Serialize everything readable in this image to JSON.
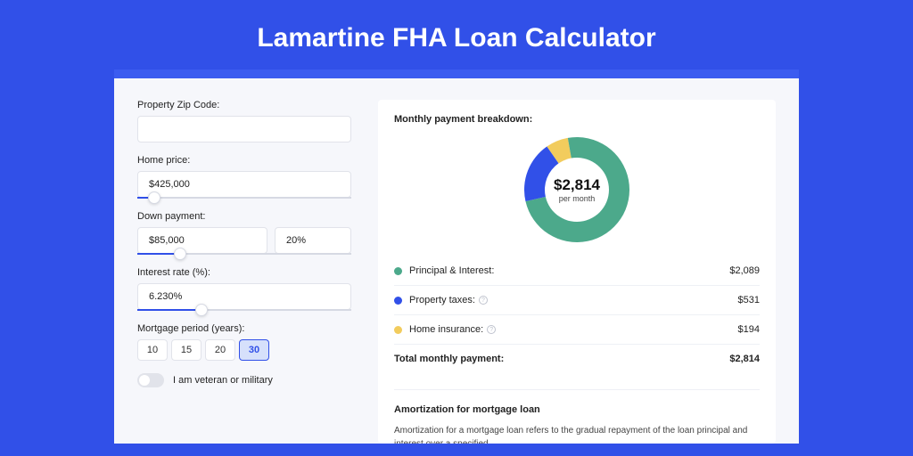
{
  "page": {
    "title": "Lamartine FHA Loan Calculator",
    "bg_color": "#3150e8",
    "card_bg": "#f6f7fb"
  },
  "form": {
    "zip": {
      "label": "Property Zip Code:",
      "value": ""
    },
    "home_price": {
      "label": "Home price:",
      "value": "$425,000",
      "slider_pct": 8
    },
    "down_payment": {
      "label": "Down payment:",
      "value": "$85,000",
      "pct": "20%",
      "slider_pct": 20
    },
    "interest": {
      "label": "Interest rate (%):",
      "value": "6.230%",
      "slider_pct": 30
    },
    "period": {
      "label": "Mortgage period (years):",
      "options": [
        "10",
        "15",
        "20",
        "30"
      ],
      "selected": "30"
    },
    "veteran": {
      "label": "I am veteran or military",
      "checked": false
    }
  },
  "breakdown": {
    "title": "Monthly payment breakdown:",
    "donut": {
      "type": "donut",
      "amount": "$2,814",
      "sub": "per month",
      "segments": [
        {
          "label": "Principal & Interest:",
          "value": "$2,089",
          "color": "#4ca98b",
          "pct": 74.2,
          "has_info": false
        },
        {
          "label": "Property taxes:",
          "value": "$531",
          "color": "#3150e8",
          "pct": 18.9,
          "has_info": true
        },
        {
          "label": "Home insurance:",
          "value": "$194",
          "color": "#f2cc5d",
          "pct": 6.9,
          "has_info": true
        }
      ],
      "inner_radius": 36,
      "outer_radius": 59,
      "background_color": "#ffffff"
    },
    "total": {
      "label": "Total monthly payment:",
      "value": "$2,814"
    }
  },
  "amortization": {
    "title": "Amortization for mortgage loan",
    "text": "Amortization for a mortgage loan refers to the gradual repayment of the loan principal and interest over a specified"
  }
}
